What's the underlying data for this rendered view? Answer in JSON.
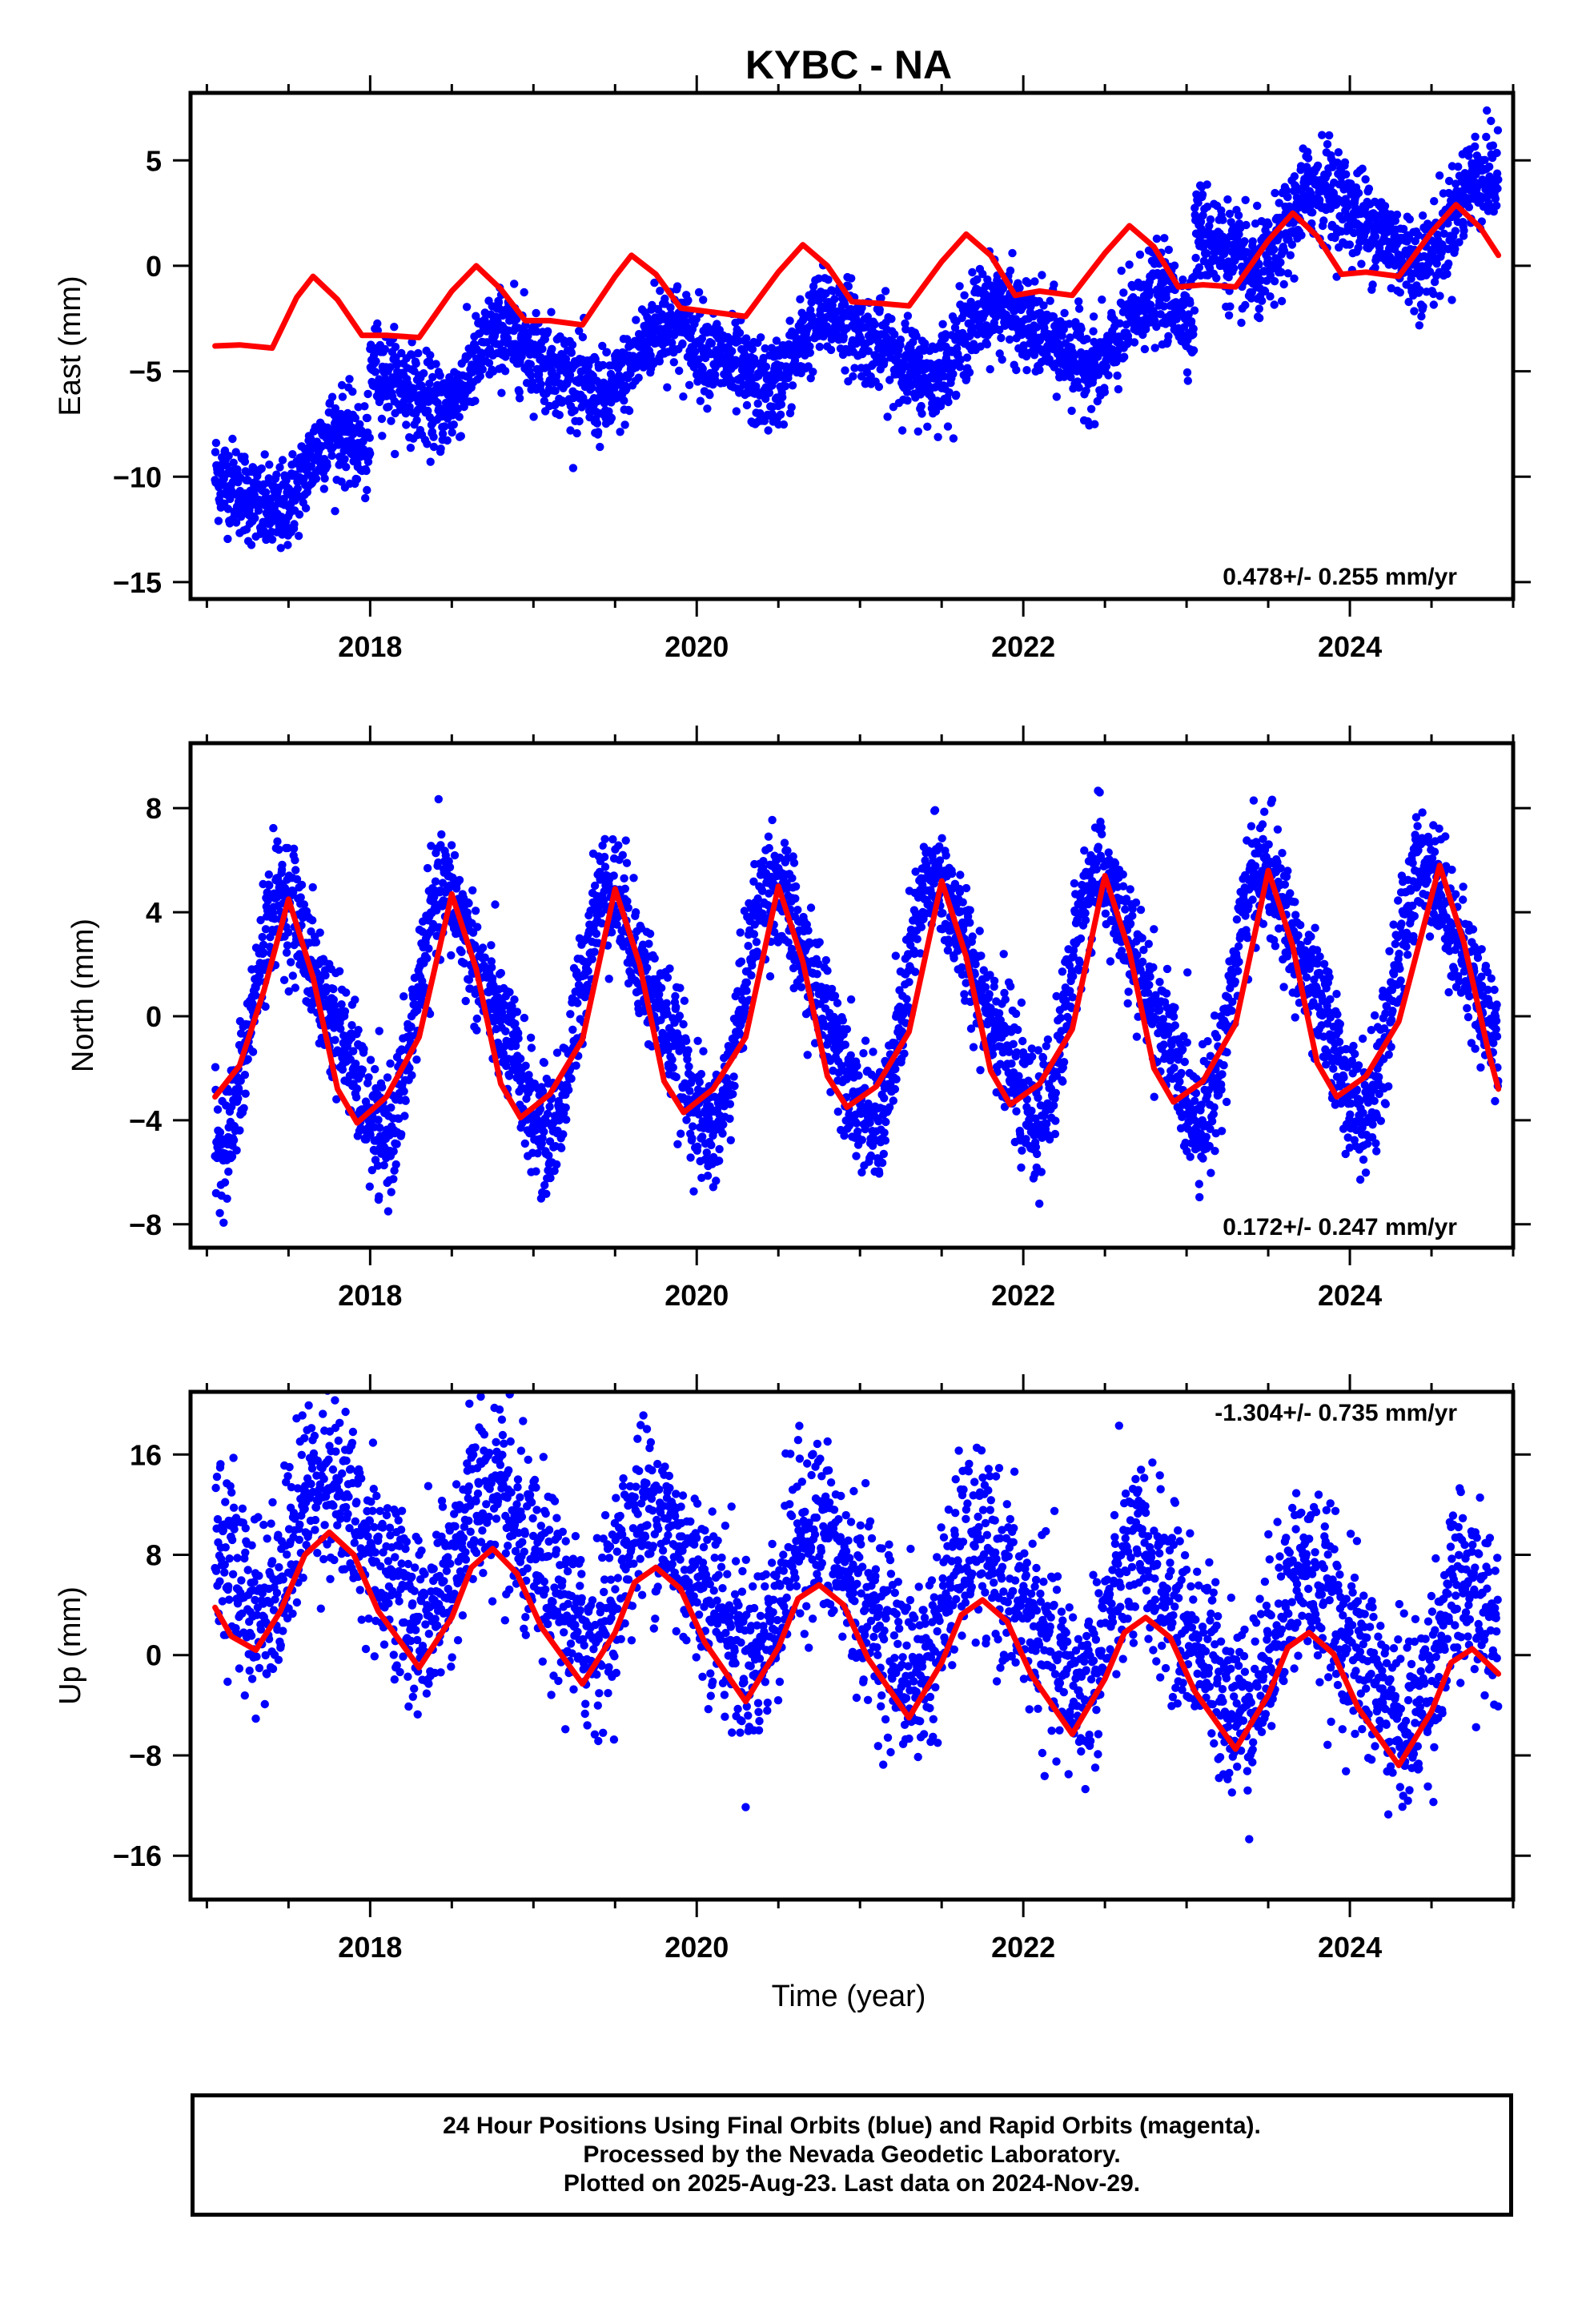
{
  "title": "KYBC - NA",
  "x_axis_label": "Time (year)",
  "x_tick_labels": [
    "2018",
    "2020",
    "2022",
    "2024"
  ],
  "footer": {
    "line1": "24 Hour Positions Using Final Orbits (blue) and Rapid Orbits (magenta).",
    "line2": "Processed by the Nevada Geodetic Laboratory.",
    "line3": "Plotted on 2025-Aug-23. Last data on 2024-Nov-29."
  },
  "colors": {
    "daily_positions": "#0000ff",
    "model_fit": "#ff0000",
    "frame": "#000000"
  },
  "chart_data": [
    {
      "type": "scatter",
      "component": "east",
      "ylabel": "East (mm)",
      "rate_label": "0.478+/- 0.255 mm/yr",
      "xlim": [
        2016.9,
        2025.0
      ],
      "ylim": [
        -15.8,
        8.2
      ],
      "yticks": [
        -15,
        -10,
        -5,
        0,
        5
      ],
      "grid": false,
      "series": [
        {
          "name": "",
          "marker": "point",
          "color": "#0000ff",
          "segments": [
            {
              "x_start": 2017.05,
              "x_end": 2018.0,
              "offset": -8.2,
              "trend": 0.478,
              "amp_annual": 1.6,
              "phase": 0.6,
              "noise": 1.05,
              "spacing": 0.0021
            },
            {
              "x_start": 2018.0,
              "x_end": 2023.05,
              "offset": -3.85,
              "trend": 0.478,
              "amp_annual": 1.5,
              "phase": 0.62,
              "noise": 1.05,
              "spacing": 0.0021
            },
            {
              "x_start": 2023.05,
              "x_end": 2024.91,
              "offset": 0.45,
              "trend": 0.478,
              "amp_annual": 1.8,
              "phase": 0.62,
              "noise": 1.15,
              "spacing": 0.0021
            }
          ]
        },
        {
          "name": "",
          "marker": "line",
          "color": "#ff0000",
          "x": [
            2017.05,
            2017.2,
            2017.4,
            2017.55,
            2017.65,
            2017.8,
            2017.95,
            2018.1,
            2018.3,
            2018.5,
            2018.65,
            2018.8,
            2018.95,
            2019.1,
            2019.3,
            2019.5,
            2019.6,
            2019.75,
            2019.9,
            2020.1,
            2020.3,
            2020.5,
            2020.65,
            2020.8,
            2020.95,
            2021.15,
            2021.3,
            2021.5,
            2021.65,
            2021.8,
            2021.95,
            2022.1,
            2022.3,
            2022.5,
            2022.65,
            2022.8,
            2022.95,
            2023.1,
            2023.3,
            2023.5,
            2023.65,
            2023.8,
            2023.95,
            2024.1,
            2024.3,
            2024.5,
            2024.65,
            2024.8,
            2024.91
          ],
          "y": [
            -3.8,
            -3.75,
            -3.9,
            -1.5,
            -0.5,
            -1.6,
            -3.3,
            -3.3,
            -3.4,
            -1.2,
            0.0,
            -1.1,
            -2.6,
            -2.6,
            -2.8,
            -0.5,
            0.5,
            -0.4,
            -2.0,
            -2.2,
            -2.4,
            -0.3,
            1.0,
            0.0,
            -1.7,
            -1.8,
            -1.9,
            0.2,
            1.5,
            0.5,
            -1.4,
            -1.2,
            -1.4,
            0.6,
            1.9,
            0.9,
            -1.0,
            -0.9,
            -1.0,
            1.2,
            2.5,
            1.4,
            -0.4,
            -0.3,
            -0.5,
            1.6,
            2.9,
            1.8,
            0.5
          ]
        }
      ]
    },
    {
      "type": "scatter",
      "component": "north",
      "ylabel": "North (mm)",
      "rate_label": "0.172+/- 0.247 mm/yr",
      "xlim": [
        2016.9,
        2025.0
      ],
      "ylim": [
        -8.9,
        10.5
      ],
      "yticks": [
        -8,
        -4,
        0,
        4,
        8
      ],
      "grid": false,
      "series": [
        {
          "name": "",
          "marker": "point",
          "color": "#0000ff",
          "segments": [
            {
              "x_start": 2017.05,
              "x_end": 2024.91,
              "offset": 0.5,
              "trend": 0.172,
              "amp_annual": 4.3,
              "phase": 0.27,
              "noise": 1.15,
              "spacing": 0.0021
            }
          ]
        },
        {
          "name": "",
          "marker": "line",
          "color": "#ff0000",
          "x": [
            2017.05,
            2017.2,
            2017.35,
            2017.5,
            2017.65,
            2017.8,
            2017.92,
            2018.1,
            2018.3,
            2018.5,
            2018.65,
            2018.8,
            2018.92,
            2019.1,
            2019.3,
            2019.5,
            2019.65,
            2019.8,
            2019.92,
            2020.1,
            2020.3,
            2020.5,
            2020.65,
            2020.8,
            2020.92,
            2021.1,
            2021.3,
            2021.5,
            2021.65,
            2021.8,
            2021.92,
            2022.1,
            2022.3,
            2022.5,
            2022.65,
            2022.8,
            2022.92,
            2023.1,
            2023.3,
            2023.5,
            2023.65,
            2023.8,
            2023.92,
            2024.1,
            2024.3,
            2024.55,
            2024.7,
            2024.85,
            2024.91
          ],
          "y": [
            -3.1,
            -1.9,
            1.0,
            4.5,
            1.5,
            -2.8,
            -4.1,
            -3.1,
            -0.8,
            4.7,
            1.8,
            -2.6,
            -3.9,
            -3.0,
            -0.9,
            4.9,
            2.0,
            -2.5,
            -3.7,
            -2.8,
            -0.8,
            5.0,
            2.1,
            -2.3,
            -3.5,
            -2.7,
            -0.6,
            5.2,
            2.3,
            -2.1,
            -3.4,
            -2.6,
            -0.5,
            5.4,
            2.5,
            -2.0,
            -3.3,
            -2.5,
            -0.3,
            5.6,
            2.7,
            -1.8,
            -3.1,
            -2.3,
            -0.2,
            5.8,
            2.8,
            -1.4,
            -2.8
          ]
        }
      ]
    },
    {
      "type": "scatter",
      "component": "up",
      "ylabel": "Up (mm)",
      "rate_label": "-1.304+/- 0.735 mm/yr",
      "xlim": [
        2016.9,
        2025.0
      ],
      "ylim": [
        -19.5,
        21.0
      ],
      "yticks": [
        -16,
        -8,
        0,
        8,
        16
      ],
      "grid": false,
      "series": [
        {
          "name": "",
          "marker": "point",
          "color": "#0000ff",
          "segments": [
            {
              "x_start": 2017.05,
              "x_end": 2024.91,
              "offset": 4.5,
              "trend": -1.304,
              "amp_annual": 5.0,
              "phase": 0.52,
              "noise": 3.6,
              "spacing": 0.0024
            }
          ]
        },
        {
          "name": "",
          "marker": "line",
          "color": "#ff0000",
          "x": [
            2017.05,
            2017.15,
            2017.3,
            2017.45,
            2017.6,
            2017.75,
            2017.9,
            2018.05,
            2018.3,
            2018.5,
            2018.62,
            2018.75,
            2018.9,
            2019.05,
            2019.3,
            2019.5,
            2019.62,
            2019.75,
            2019.9,
            2020.05,
            2020.3,
            2020.5,
            2020.62,
            2020.75,
            2020.9,
            2021.05,
            2021.3,
            2021.5,
            2021.62,
            2021.75,
            2021.9,
            2022.05,
            2022.3,
            2022.5,
            2022.62,
            2022.75,
            2022.9,
            2023.05,
            2023.3,
            2023.5,
            2023.62,
            2023.75,
            2023.9,
            2024.05,
            2024.3,
            2024.5,
            2024.62,
            2024.75,
            2024.91
          ],
          "y": [
            3.8,
            1.5,
            0.4,
            3.5,
            8.0,
            9.8,
            8.0,
            3.5,
            -1.0,
            3.0,
            7.0,
            8.5,
            6.5,
            2.2,
            -2.3,
            1.8,
            5.8,
            7.0,
            5.3,
            1.0,
            -3.7,
            0.6,
            4.5,
            5.6,
            4.0,
            -0.3,
            -5.0,
            -0.6,
            3.2,
            4.4,
            2.7,
            -1.6,
            -6.3,
            -1.9,
            1.8,
            3.0,
            1.4,
            -2.9,
            -7.5,
            -3.2,
            0.6,
            1.8,
            0.1,
            -4.2,
            -8.8,
            -4.5,
            -0.6,
            0.5,
            -1.5
          ]
        }
      ]
    }
  ]
}
